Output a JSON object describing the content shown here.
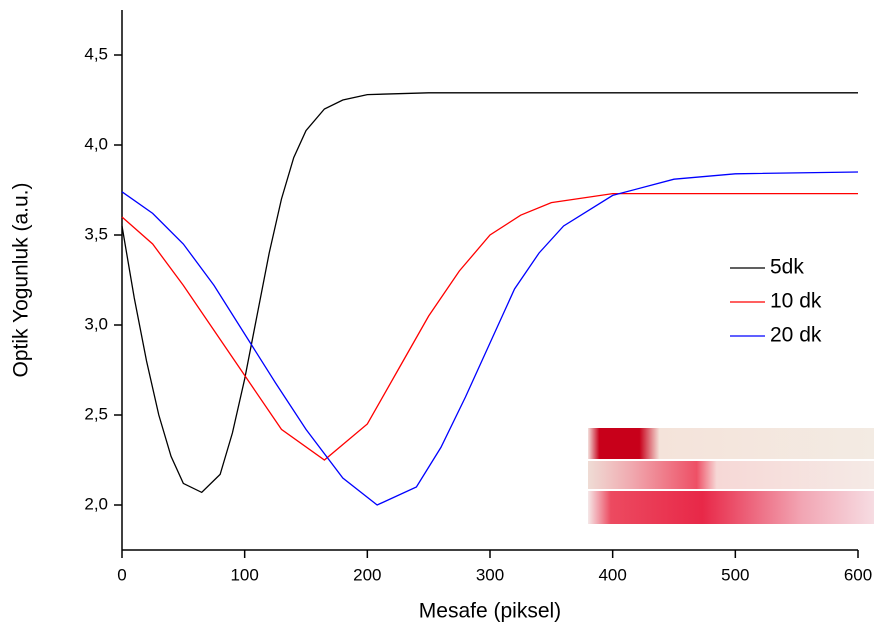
{
  "chart_data": {
    "type": "line",
    "xlabel": "Mesafe (piksel)",
    "ylabel": "Optik Yogunluk (a.u.)",
    "xlim": [
      0,
      600
    ],
    "xticks": [
      0,
      100,
      200,
      300,
      400,
      500,
      600
    ],
    "ylim": [
      1.75,
      4.75
    ],
    "yticks": [
      {
        "value": 2.0,
        "label": "2,0"
      },
      {
        "value": 2.5,
        "label": "2,5"
      },
      {
        "value": 3.0,
        "label": "3,0"
      },
      {
        "value": 3.5,
        "label": "3,5"
      },
      {
        "value": 4.0,
        "label": "4,0"
      },
      {
        "value": 4.5,
        "label": "4,5"
      }
    ],
    "legend": "right",
    "series": [
      {
        "name": "5dk",
        "color": "#000000",
        "x": [
          0,
          10,
          20,
          30,
          40,
          50,
          65,
          80,
          90,
          100,
          110,
          120,
          130,
          140,
          150,
          165,
          180,
          200,
          250,
          600
        ],
        "values": [
          3.55,
          3.15,
          2.8,
          2.5,
          2.27,
          2.12,
          2.07,
          2.17,
          2.4,
          2.7,
          3.05,
          3.4,
          3.7,
          3.93,
          4.08,
          4.2,
          4.25,
          4.28,
          4.29,
          4.29
        ]
      },
      {
        "name": "10 dk",
        "color": "#ff0000",
        "x": [
          0,
          25,
          50,
          75,
          100,
          130,
          165,
          200,
          225,
          250,
          275,
          300,
          325,
          350,
          400,
          600
        ],
        "values": [
          3.6,
          3.45,
          3.22,
          2.97,
          2.72,
          2.42,
          2.25,
          2.45,
          2.75,
          3.05,
          3.3,
          3.5,
          3.61,
          3.68,
          3.73,
          3.73
        ]
      },
      {
        "name": "20 dk",
        "color": "#0000ff",
        "x": [
          0,
          25,
          50,
          75,
          100,
          125,
          150,
          180,
          208,
          240,
          260,
          280,
          300,
          320,
          340,
          360,
          400,
          450,
          500,
          600
        ],
        "values": [
          3.74,
          3.62,
          3.45,
          3.22,
          2.95,
          2.68,
          2.42,
          2.15,
          2.0,
          2.1,
          2.32,
          2.6,
          2.9,
          3.2,
          3.4,
          3.55,
          3.72,
          3.81,
          3.84,
          3.85
        ]
      }
    ]
  }
}
